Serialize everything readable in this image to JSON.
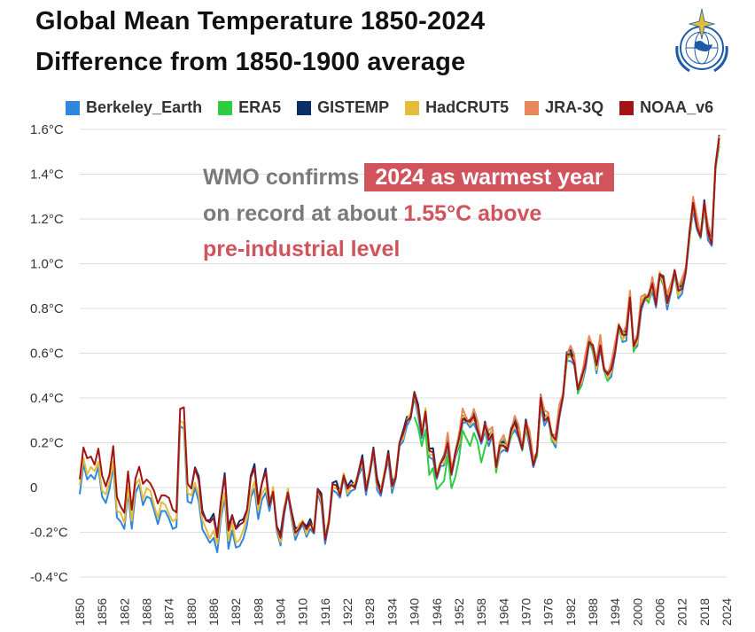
{
  "header": {
    "title": "Global Mean Temperature 1850-2024",
    "subtitle": "Difference from 1850-1900 average"
  },
  "annotation": {
    "part1": "WMO confirms",
    "highlight": "2024 as warmest year",
    "line2_part1": "on record at about",
    "line2_value": "1.55°C above",
    "line3": "pre-industrial level"
  },
  "colors": {
    "Berkeley_Earth": "#2e86de",
    "ERA5": "#2ecc40",
    "GISTEMP": "#0b2e66",
    "HadCRUT5": "#e2bd3a",
    "JRA-3Q": "#e8875a",
    "NOAA_v6": "#a31515",
    "highlight": "#d1545c",
    "grid": "#dddddd"
  },
  "chart_data": {
    "type": "line",
    "title": "Global Mean Temperature 1850-2024",
    "subtitle": "Difference from 1850-1900 average",
    "xlabel": "",
    "ylabel": "",
    "xlim": [
      1850,
      2024
    ],
    "ylim": [
      -0.4,
      1.6
    ],
    "yticks": [
      -0.4,
      -0.2,
      0,
      0.2,
      0.4,
      0.6,
      0.8,
      1.0,
      1.2,
      1.4,
      1.6
    ],
    "ytick_labels": [
      "-0.4°C",
      "-0.2°C",
      "0",
      "0.2°C",
      "0.4°C",
      "0.6°C",
      "0.8°C",
      "1.0°C",
      "1.2°C",
      "1.4°C",
      "1.6°C"
    ],
    "xticks": [
      1850,
      1856,
      1862,
      1868,
      1874,
      1880,
      1886,
      1892,
      1898,
      1904,
      1910,
      1916,
      1922,
      1928,
      1934,
      1940,
      1946,
      1952,
      1958,
      1964,
      1970,
      1976,
      1982,
      1988,
      1994,
      2000,
      2006,
      2012,
      2018,
      2024
    ],
    "grid": true,
    "legend_position": "top",
    "series_order": [
      "Berkeley_Earth",
      "ERA5",
      "GISTEMP",
      "HadCRUT5",
      "JRA-3Q",
      "NOAA_v6"
    ],
    "base": {
      "start": 1850,
      "values": [
        0.05,
        0.17,
        0.12,
        0.15,
        0.11,
        0.16,
        0.05,
        0.02,
        0.06,
        0.17,
        -0.04,
        -0.07,
        -0.12,
        0.06,
        -0.09,
        0.05,
        0.08,
        0.01,
        0.05,
        0.02,
        -0.03,
        -0.07,
        -0.02,
        -0.04,
        -0.06,
        -0.09,
        -0.1,
        0.34,
        0.35,
        0.03,
        0.0,
        0.07,
        0.03,
        -0.1,
        -0.15,
        -0.17,
        -0.13,
        -0.21,
        -0.07,
        0.04,
        -0.18,
        -0.12,
        -0.2,
        -0.17,
        -0.14,
        -0.1,
        0.03,
        0.09,
        -0.06,
        0.01,
        0.06,
        -0.07,
        -0.01,
        -0.19,
        -0.23,
        -0.09,
        -0.02,
        -0.13,
        -0.2,
        -0.17,
        -0.16,
        -0.2,
        -0.15,
        -0.19,
        -0.02,
        -0.05,
        -0.22,
        -0.15,
        0.0,
        0.01,
        -0.02,
        0.05,
        -0.02,
        0.02,
        0.01,
        0.06,
        0.12,
        0.0,
        0.07,
        0.16,
        0.02,
        -0.01,
        0.06,
        0.14,
        0.01,
        0.06,
        0.19,
        0.23,
        0.31,
        0.32,
        0.41,
        0.35,
        0.25,
        0.34,
        0.15,
        0.16,
        0.06,
        0.1,
        0.12,
        0.21,
        0.07,
        0.14,
        0.21,
        0.32,
        0.3,
        0.28,
        0.32,
        0.27,
        0.2,
        0.27,
        0.22,
        0.25,
        0.08,
        0.18,
        0.2,
        0.17,
        0.24,
        0.29,
        0.25,
        0.17,
        0.28,
        0.22,
        0.11,
        0.15,
        0.39,
        0.31,
        0.32,
        0.22,
        0.21,
        0.34,
        0.41,
        0.58,
        0.6,
        0.57,
        0.43,
        0.48,
        0.56,
        0.66,
        0.62,
        0.54,
        0.65,
        0.53,
        0.49,
        0.53,
        0.62,
        0.72,
        0.67,
        0.69,
        0.86,
        0.62,
        0.66,
        0.82,
        0.85,
        0.84,
        0.91,
        0.83,
        0.95,
        0.92,
        0.83,
        0.89,
        0.96,
        0.87,
        0.9,
        0.97,
        1.12,
        1.27,
        1.18,
        1.12,
        1.26,
        1.14,
        1.1,
        1.43,
        1.55
      ]
    },
    "series": [
      {
        "name": "Berkeley_Earth",
        "start": 1850,
        "offset": -0.08
      },
      {
        "name": "ERA5",
        "start": 1940,
        "offset": 0.0
      },
      {
        "name": "GISTEMP",
        "start": 1880,
        "offset": 0.01
      },
      {
        "name": "HadCRUT5",
        "start": 1850,
        "offset": -0.05
      },
      {
        "name": "JRA-3Q",
        "start": 1947,
        "offset": 0.02
      },
      {
        "name": "NOAA_v6",
        "start": 1850,
        "offset": 0.0
      }
    ]
  }
}
